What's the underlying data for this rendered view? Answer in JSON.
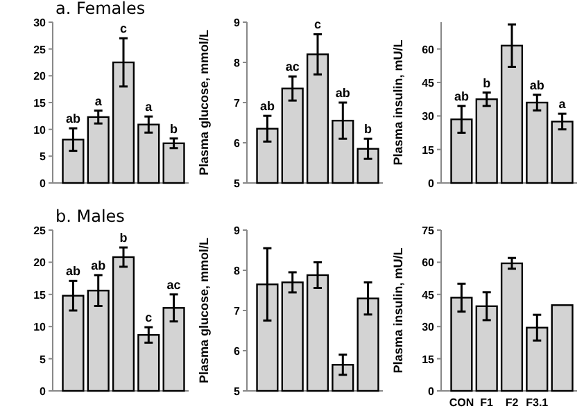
{
  "chart_data": [
    {
      "type": "bar",
      "title": "a.  Females",
      "categories": [
        null,
        null,
        null,
        null,
        null
      ],
      "values": [
        8.1,
        12.3,
        22.5,
        10.9,
        7.4
      ],
      "errors": [
        2.1,
        1.2,
        4.5,
        1.5,
        0.9
      ],
      "value_labels": [
        "ab",
        "a",
        "c",
        "a",
        "b"
      ],
      "color": "#d3d3d3",
      "ylim": [
        0,
        30
      ],
      "yticks": [
        0,
        5,
        10,
        15,
        20,
        25,
        30
      ],
      "tick_labels": "y"
    },
    {
      "type": "bar",
      "ylabel": "Plasma glucose, mmol/L",
      "categories": [
        null,
        null,
        null,
        null,
        null
      ],
      "values": [
        6.35,
        7.35,
        8.2,
        6.55,
        5.85
      ],
      "errors": [
        0.32,
        0.3,
        0.5,
        0.45,
        0.25
      ],
      "value_labels": [
        "ab",
        "ac",
        "c",
        "ab",
        "b"
      ],
      "color": "#d3d3d3",
      "ylim": [
        5,
        9
      ],
      "yticks": [
        5,
        6,
        7,
        8,
        9
      ],
      "tick_labels": "y"
    },
    {
      "type": "bar",
      "ylabel": "Plasma insulin, mU/L",
      "categories": [
        null,
        null,
        null,
        null,
        null
      ],
      "values": [
        28.5,
        37.5,
        61.5,
        36,
        27.5
      ],
      "errors": [
        6,
        3,
        9.5,
        3.5,
        3.5
      ],
      "value_labels": [
        "ab",
        "b",
        null,
        "ab",
        "a"
      ],
      "color": "#d3d3d3",
      "ylim": [
        0,
        72
      ],
      "yticks": [
        0,
        15,
        30,
        45,
        60
      ],
      "tick_labels": "y"
    },
    {
      "type": "bar",
      "title": "b.  Males",
      "categories": [
        null,
        null,
        null,
        null,
        null
      ],
      "values": [
        14.8,
        15.6,
        20.8,
        8.7,
        12.9
      ],
      "errors": [
        2.3,
        2.4,
        1.5,
        1.2,
        2.1
      ],
      "value_labels": [
        "ab",
        "ab",
        "b",
        "c",
        "ac"
      ],
      "color": "#d3d3d3",
      "ylim": [
        0,
        25
      ],
      "yticks": [
        0,
        5,
        10,
        15,
        20,
        25
      ],
      "tick_labels": "y"
    },
    {
      "type": "bar",
      "ylabel": "Plasma glucose, mmol/L",
      "categories": [
        null,
        null,
        null,
        null,
        null
      ],
      "values": [
        7.65,
        7.7,
        7.88,
        5.65,
        7.3
      ],
      "errors": [
        0.9,
        0.25,
        0.32,
        0.25,
        0.4
      ],
      "color": "#d3d3d3",
      "ylim": [
        5,
        9
      ],
      "yticks": [
        5,
        6,
        7,
        8,
        9
      ],
      "tick_labels": "y"
    },
    {
      "type": "bar",
      "ylabel": "Plasma insulin, mU/L",
      "categories": [
        "CON",
        "F1",
        "F2",
        "F3.1",
        null
      ],
      "values": [
        43.5,
        39.5,
        59.5,
        29.5,
        40
      ],
      "errors": [
        6.5,
        6.5,
        2.5,
        6,
        null
      ],
      "color": "#d3d3d3",
      "ylim": [
        0,
        75
      ],
      "yticks": [
        0,
        15,
        30,
        45,
        60,
        75
      ]
    }
  ]
}
